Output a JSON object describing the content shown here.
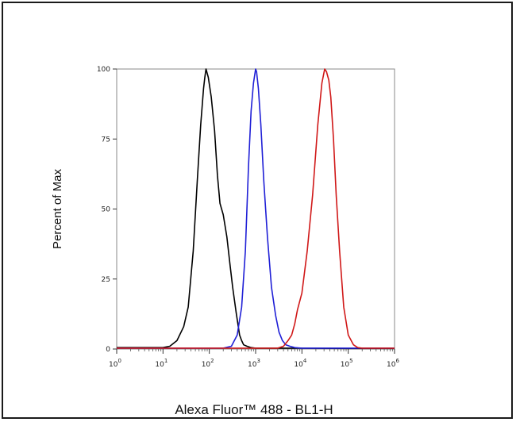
{
  "chart_data": {
    "type": "line",
    "title": "",
    "xlabel": "Alexa Fluor™ 488 - BL1-H",
    "ylabel": "Percent of Max",
    "xscale": "log",
    "xlim": [
      1,
      1000000
    ],
    "ylim": [
      0,
      100
    ],
    "x_ticks": [
      {
        "base": "10",
        "exp": "0",
        "value": 1
      },
      {
        "base": "10",
        "exp": "1",
        "value": 10
      },
      {
        "base": "10",
        "exp": "2",
        "value": 100
      },
      {
        "base": "10",
        "exp": "3",
        "value": 1000
      },
      {
        "base": "10",
        "exp": "4",
        "value": 10000
      },
      {
        "base": "10",
        "exp": "5",
        "value": 100000
      },
      {
        "base": "10",
        "exp": "6",
        "value": 1000000
      }
    ],
    "y_ticks": [
      {
        "label": "0",
        "value": 0
      },
      {
        "label": "25",
        "value": 25
      },
      {
        "label": "50",
        "value": 50
      },
      {
        "label": "75",
        "value": 75
      },
      {
        "label": "100",
        "value": 100
      }
    ],
    "grid": false,
    "legend": "none",
    "series": [
      {
        "color": "#000000",
        "x": [
          1,
          10,
          14,
          20,
          28,
          35,
          45,
          55,
          65,
          75,
          80,
          85,
          95,
          110,
          130,
          150,
          170,
          200,
          240,
          280,
          320,
          380,
          450,
          500,
          550,
          650,
          800,
          1000,
          2000,
          5000,
          100000,
          1000000
        ],
        "y": [
          0.5,
          0.5,
          1,
          3,
          8,
          15,
          35,
          60,
          80,
          93,
          97,
          100,
          97,
          90,
          78,
          62,
          52,
          48,
          40,
          30,
          22,
          13,
          5,
          3,
          1.5,
          1,
          0.5,
          0.3,
          0.3,
          0.3,
          0.2,
          0.2
        ]
      },
      {
        "color": "#1f1fd6",
        "x": [
          1,
          200,
          300,
          400,
          500,
          600,
          700,
          800,
          900,
          1000,
          1050,
          1150,
          1300,
          1500,
          1800,
          2200,
          2700,
          3200,
          3800,
          4500,
          5500,
          7000,
          10000,
          100000,
          1000000
        ],
        "y": [
          0.3,
          0.3,
          1,
          5,
          15,
          35,
          65,
          85,
          95,
          100,
          99,
          93,
          80,
          60,
          40,
          22,
          12,
          6,
          3,
          1.5,
          1,
          0.5,
          0.3,
          0.3,
          0.3
        ]
      },
      {
        "color": "#d01818",
        "x": [
          1,
          3000,
          4000,
          5000,
          6000,
          7000,
          8000,
          10000,
          13000,
          17000,
          22000,
          27000,
          31000,
          34000,
          38000,
          42000,
          48000,
          55000,
          65000,
          80000,
          100000,
          130000,
          160000,
          200000,
          1000000
        ],
        "y": [
          0.3,
          0.3,
          1,
          3,
          5,
          9,
          14,
          20,
          35,
          55,
          80,
          95,
          100,
          99,
          96,
          90,
          75,
          55,
          35,
          15,
          5,
          1.5,
          0.5,
          0.3,
          0.3
        ]
      }
    ]
  }
}
